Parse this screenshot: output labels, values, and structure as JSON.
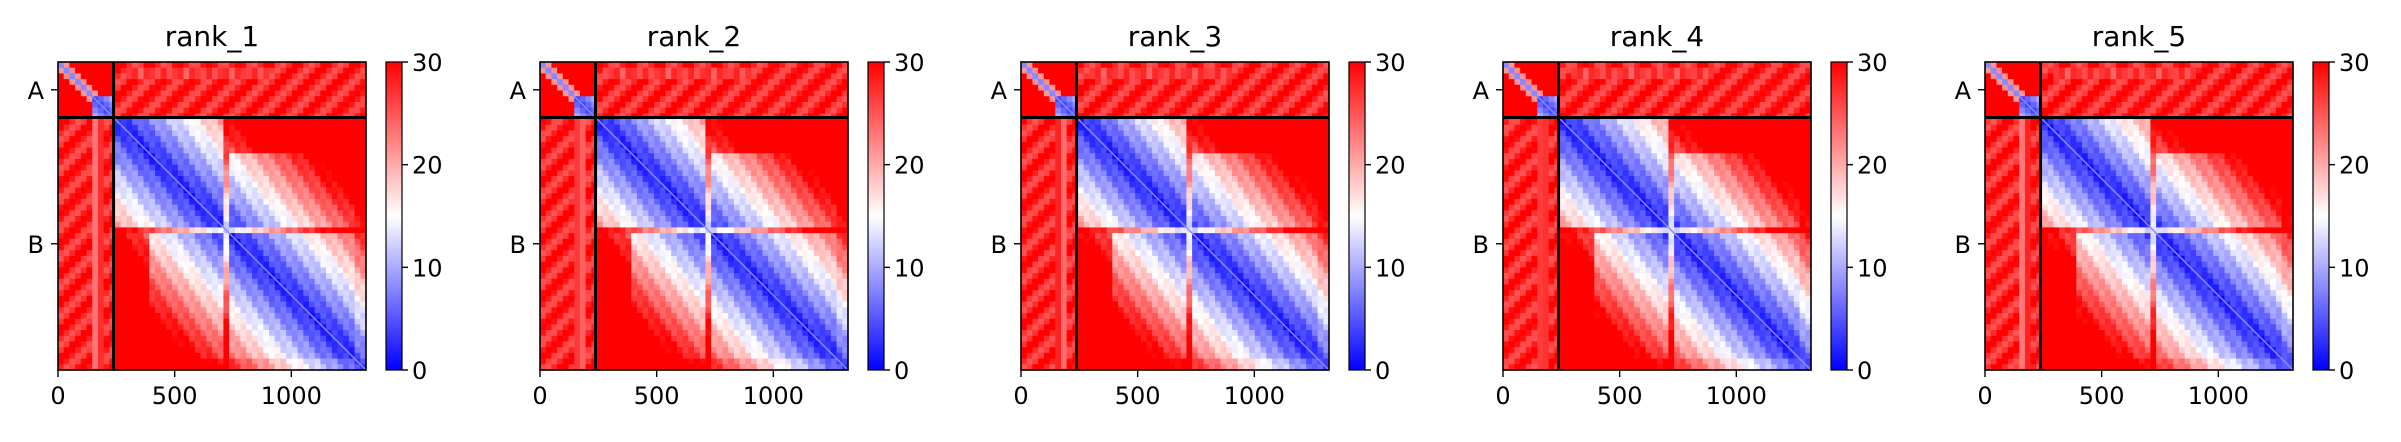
{
  "colors": {
    "low": "#0000ff",
    "mid": "#ffffff",
    "high": "#ff0000",
    "frame": "#000000",
    "background": "#ffffff"
  },
  "chart_data": [
    {
      "type": "heatmap",
      "title": "rank_1",
      "n": 1320,
      "chain_break": 238,
      "chains": [
        {
          "label": "A",
          "start": 0,
          "end": 238
        },
        {
          "label": "B",
          "start": 238,
          "end": 1320
        }
      ],
      "x_ticks": [
        0,
        500,
        1000
      ],
      "x_tick_labels": [
        "0",
        "500",
        "1000"
      ],
      "colorbar": {
        "min": 0,
        "max": 30,
        "ticks": [
          0,
          10,
          20,
          30
        ],
        "tick_labels": [
          "0",
          "10",
          "20",
          "30"
        ],
        "colormap": "bwr"
      },
      "xlabel": "",
      "ylabel": ""
    },
    {
      "type": "heatmap",
      "title": "rank_2",
      "n": 1320,
      "chain_break": 238,
      "chains": [
        {
          "label": "A",
          "start": 0,
          "end": 238
        },
        {
          "label": "B",
          "start": 238,
          "end": 1320
        }
      ],
      "x_ticks": [
        0,
        500,
        1000
      ],
      "x_tick_labels": [
        "0",
        "500",
        "1000"
      ],
      "colorbar": {
        "min": 0,
        "max": 30,
        "ticks": [
          0,
          10,
          20,
          30
        ],
        "tick_labels": [
          "0",
          "10",
          "20",
          "30"
        ],
        "colormap": "bwr"
      },
      "xlabel": "",
      "ylabel": ""
    },
    {
      "type": "heatmap",
      "title": "rank_3",
      "n": 1320,
      "chain_break": 238,
      "chains": [
        {
          "label": "A",
          "start": 0,
          "end": 238
        },
        {
          "label": "B",
          "start": 238,
          "end": 1320
        }
      ],
      "x_ticks": [
        0,
        500,
        1000
      ],
      "x_tick_labels": [
        "0",
        "500",
        "1000"
      ],
      "colorbar": {
        "min": 0,
        "max": 30,
        "ticks": [
          0,
          10,
          20,
          30
        ],
        "tick_labels": [
          "0",
          "10",
          "20",
          "30"
        ],
        "colormap": "bwr"
      },
      "xlabel": "",
      "ylabel": ""
    },
    {
      "type": "heatmap",
      "title": "rank_4",
      "n": 1320,
      "chain_break": 238,
      "chains": [
        {
          "label": "A",
          "start": 0,
          "end": 238
        },
        {
          "label": "B",
          "start": 238,
          "end": 1320
        }
      ],
      "x_ticks": [
        0,
        500,
        1000
      ],
      "x_tick_labels": [
        "0",
        "500",
        "1000"
      ],
      "colorbar": {
        "min": 0,
        "max": 30,
        "ticks": [
          0,
          10,
          20,
          30
        ],
        "tick_labels": [
          "0",
          "10",
          "20",
          "30"
        ],
        "colormap": "bwr"
      },
      "xlabel": "",
      "ylabel": ""
    },
    {
      "type": "heatmap",
      "title": "rank_5",
      "n": 1320,
      "chain_break": 238,
      "chains": [
        {
          "label": "A",
          "start": 0,
          "end": 238
        },
        {
          "label": "B",
          "start": 238,
          "end": 1320
        }
      ],
      "x_ticks": [
        0,
        500,
        1000
      ],
      "x_tick_labels": [
        "0",
        "500",
        "1000"
      ],
      "colorbar": {
        "min": 0,
        "max": 30,
        "ticks": [
          0,
          10,
          20,
          30
        ],
        "tick_labels": [
          "0",
          "10",
          "20",
          "30"
        ],
        "colormap": "bwr"
      },
      "xlabel": "",
      "ylabel": ""
    }
  ]
}
